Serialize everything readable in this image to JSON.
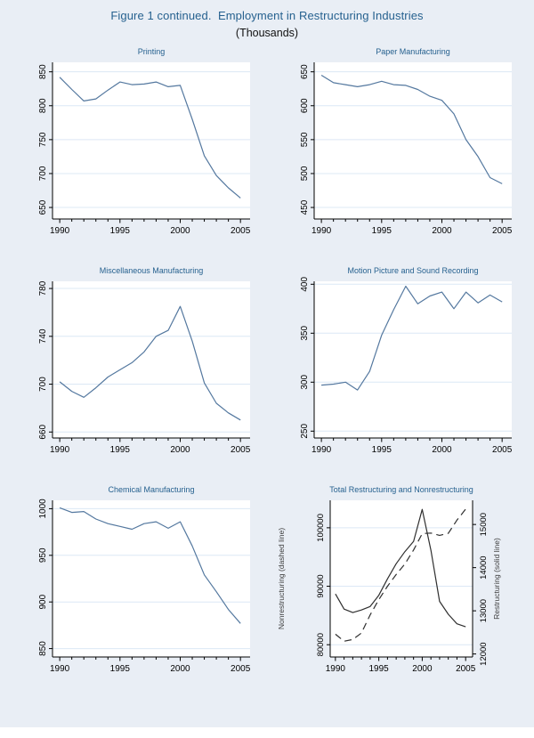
{
  "page": {
    "title": "Figure 1 continued.  Employment in Restructuring Industries",
    "subtitle": "(Thousands)"
  },
  "colors": {
    "background": "#e9eef5",
    "plot_background": "#ffffff",
    "gridline": "#dce8f5",
    "axis": "#000000",
    "tick_text": "#000000",
    "axis_label_text": "#3c3c3c",
    "title_blue": "#26618f",
    "series_blue": "#54789f",
    "series_black": "#2f2f2f"
  },
  "chart_data": [
    {
      "type": "line",
      "title": "Printing",
      "x": [
        1990,
        1991,
        1992,
        1993,
        1994,
        1995,
        1996,
        1997,
        1998,
        1999,
        2000,
        2001,
        2002,
        2003,
        2004,
        2005
      ],
      "x_range": [
        1989.4,
        2005.8
      ],
      "x_ticks_major": [
        1990,
        1995,
        2000,
        2005
      ],
      "x_ticks_minor": [
        1991,
        1992,
        1993,
        1994,
        1996,
        1997,
        1998,
        1999,
        2001,
        2002,
        2003,
        2004
      ],
      "y_left": {
        "ticks": [
          650,
          700,
          750,
          800,
          850
        ],
        "range": [
          633,
          864
        ]
      },
      "series": [
        {
          "name": "Printing employment",
          "axis": "left",
          "style": "solid",
          "color": "blue",
          "values": [
            842,
            824,
            807,
            810,
            823,
            835,
            831,
            832,
            835,
            828,
            830,
            780,
            726,
            697,
            679,
            664
          ]
        }
      ]
    },
    {
      "type": "line",
      "title": "Paper Manufacturing",
      "x": [
        1990,
        1991,
        1992,
        1993,
        1994,
        1995,
        1996,
        1997,
        1998,
        1999,
        2000,
        2001,
        2002,
        2003,
        2004,
        2005
      ],
      "x_range": [
        1989.4,
        2005.8
      ],
      "x_ticks_major": [
        1990,
        1995,
        2000,
        2005
      ],
      "x_ticks_minor": [
        1991,
        1992,
        1993,
        1994,
        1996,
        1997,
        1998,
        1999,
        2001,
        2002,
        2003,
        2004
      ],
      "y_left": {
        "ticks": [
          450,
          500,
          550,
          600,
          650
        ],
        "range": [
          433,
          664
        ]
      },
      "series": [
        {
          "name": "Paper manufacturing employment",
          "axis": "left",
          "style": "solid",
          "color": "blue",
          "values": [
            645,
            634,
            631,
            628,
            631,
            636,
            631,
            630,
            624,
            614,
            608,
            588,
            550,
            525,
            494,
            485
          ]
        }
      ]
    },
    {
      "type": "line",
      "title": "Miscellaneous Manufacturing",
      "x": [
        1990,
        1991,
        1992,
        1993,
        1994,
        1995,
        1996,
        1997,
        1998,
        1999,
        2000,
        2001,
        2002,
        2003,
        2004,
        2005
      ],
      "x_range": [
        1989.4,
        2005.8
      ],
      "x_ticks_major": [
        1990,
        1995,
        2000,
        2005
      ],
      "x_ticks_minor": [
        1991,
        1992,
        1993,
        1994,
        1996,
        1997,
        1998,
        1999,
        2001,
        2002,
        2003,
        2004
      ],
      "y_left": {
        "ticks": [
          660,
          700,
          740,
          780
        ],
        "range": [
          655,
          786
        ]
      },
      "series": [
        {
          "name": "Miscellaneous manufacturing employment",
          "axis": "left",
          "style": "solid",
          "color": "blue",
          "values": [
            702,
            694,
            689,
            697,
            706,
            712,
            718,
            727,
            740,
            745,
            765,
            736,
            701,
            684,
            676,
            670
          ]
        }
      ]
    },
    {
      "type": "line",
      "title": "Motion Picture and Sound Recording",
      "x": [
        1990,
        1991,
        1992,
        1993,
        1994,
        1995,
        1996,
        1997,
        1998,
        1999,
        2000,
        2001,
        2002,
        2003,
        2004,
        2005
      ],
      "x_range": [
        1989.4,
        2005.8
      ],
      "x_ticks_major": [
        1990,
        1995,
        2000,
        2005
      ],
      "x_ticks_minor": [
        1991,
        1992,
        1993,
        1994,
        1996,
        1997,
        1998,
        1999,
        2001,
        2002,
        2003,
        2004
      ],
      "y_left": {
        "ticks": [
          250,
          300,
          350,
          400
        ],
        "range": [
          243,
          403
        ]
      },
      "series": [
        {
          "name": "Motion picture and sound recording employment",
          "axis": "left",
          "style": "solid",
          "color": "blue",
          "values": [
            297,
            298,
            300,
            292,
            311,
            348,
            374,
            398,
            380,
            388,
            392,
            375,
            392,
            381,
            389,
            382
          ]
        }
      ]
    },
    {
      "type": "line",
      "title": "Chemical Manufacturing",
      "x": [
        1990,
        1991,
        1992,
        1993,
        1994,
        1995,
        1996,
        1997,
        1998,
        1999,
        2000,
        2001,
        2002,
        2003,
        2004,
        2005
      ],
      "x_range": [
        1989.4,
        2005.8
      ],
      "x_ticks_major": [
        1990,
        1995,
        2000,
        2005
      ],
      "x_ticks_minor": [
        1991,
        1992,
        1993,
        1994,
        1996,
        1997,
        1998,
        1999,
        2001,
        2002,
        2003,
        2004
      ],
      "y_left": {
        "ticks": [
          850,
          900,
          950,
          1000
        ],
        "range": [
          841,
          1009
        ]
      },
      "series": [
        {
          "name": "Chemical manufacturing employment",
          "axis": "left",
          "style": "solid",
          "color": "blue",
          "values": [
            1001,
            996,
            997,
            989,
            984,
            981,
            978,
            984,
            986,
            979,
            986,
            960,
            929,
            911,
            892,
            877
          ]
        }
      ]
    },
    {
      "type": "line",
      "title": "Total Restructuring and Nonrestructuring",
      "x": [
        1990,
        1991,
        1992,
        1993,
        1994,
        1995,
        1996,
        1997,
        1998,
        1999,
        2000,
        2001,
        2002,
        2003,
        2004,
        2005
      ],
      "x_range": [
        1989.4,
        2005.8
      ],
      "x_ticks_major": [
        1990,
        1995,
        2000,
        2005
      ],
      "x_ticks_minor": [
        1991,
        1992,
        1993,
        1994,
        1996,
        1997,
        1998,
        1999,
        2001,
        2002,
        2003,
        2004
      ],
      "y_left": {
        "label": "Nonrestructuring (dashed line)",
        "ticks": [
          80000,
          90000,
          100000
        ],
        "range": [
          77900,
          104700
        ]
      },
      "y_right": {
        "label": "Restructuring (solid line)",
        "ticks": [
          12000,
          13000,
          14000,
          15000
        ],
        "range": [
          11930,
          15560
        ]
      },
      "series": [
        {
          "name": "Nonrestructuring",
          "axis": "left",
          "style": "dashed",
          "color": "black",
          "values": [
            81800,
            80600,
            80900,
            82000,
            85100,
            87700,
            90000,
            92000,
            93800,
            96200,
            99000,
            99100,
            98700,
            99050,
            101300,
            103200
          ]
        },
        {
          "name": "Restructuring",
          "axis": "right",
          "style": "solid",
          "color": "black",
          "values": [
            13390,
            13040,
            12960,
            13020,
            13100,
            13360,
            13740,
            14090,
            14370,
            14610,
            15350,
            14400,
            13220,
            12920,
            12700,
            12630
          ]
        }
      ]
    }
  ]
}
